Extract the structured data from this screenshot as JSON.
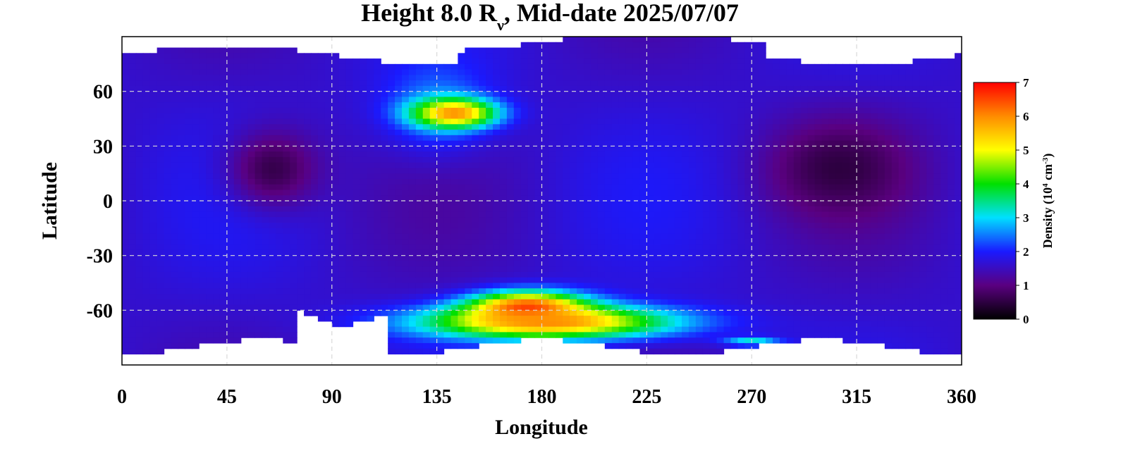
{
  "chart_data": {
    "type": "heatmap",
    "title_parts": {
      "lead": "Height 8.0 R",
      "subscript": "ν",
      "rest": ", Mid-date 2025/07/07"
    },
    "xlabel": "Longitude",
    "ylabel": "Latitude",
    "xlim": [
      0,
      360
    ],
    "ylim": [
      -90,
      90
    ],
    "x_ticks": [
      0,
      45,
      90,
      135,
      180,
      225,
      270,
      315,
      360
    ],
    "y_ticks": [
      60,
      30,
      0,
      -30,
      -60
    ],
    "x_tick_labels": [
      "0",
      "45",
      "90",
      "135",
      "180",
      "225",
      "270",
      "315",
      "360"
    ],
    "y_tick_labels": [
      "60",
      "30",
      "0",
      "-30",
      "-60"
    ],
    "grid": true,
    "colorbar": {
      "label_parts": {
        "lead": "Density (10",
        "sup1": "4",
        "mid": " cm",
        "sup2": "-3",
        "tail": ")"
      },
      "range": [
        0,
        7
      ],
      "ticks": [
        0,
        1,
        2,
        3,
        4,
        5,
        6,
        7
      ],
      "tick_labels": [
        "0",
        "1",
        "2",
        "3",
        "4",
        "5",
        "6",
        "7"
      ],
      "colors": [
        "#000000",
        "#5a0080",
        "#1a1aff",
        "#00e0ff",
        "#00e000",
        "#ffff00",
        "#ff8c00",
        "#ff0000"
      ],
      "placement": "right"
    },
    "features": [
      {
        "region": "stream-north",
        "lon": [
          105,
          165
        ],
        "lat": [
          20,
          85
        ],
        "density": 2.5
      },
      {
        "region": "northern-blob",
        "lon": [
          120,
          165
        ],
        "lat": [
          38,
          58
        ],
        "density": 6.0
      },
      {
        "region": "south-red-core",
        "lon": [
          143,
          205
        ],
        "lat": [
          -70,
          -48
        ],
        "density": 7.0
      },
      {
        "region": "south-orange-band",
        "lon": [
          115,
          250
        ],
        "lat": [
          -78,
          -55
        ],
        "density": 6.0
      },
      {
        "region": "north-low",
        "lon": [
          40,
          90
        ],
        "lat": [
          -10,
          45
        ],
        "density": 0.6
      },
      {
        "region": "east-low",
        "lon": [
          270,
          345
        ],
        "lat": [
          -15,
          50
        ],
        "density": 0.5
      },
      {
        "region": "south-cyan-patch",
        "lon": [
          255,
          285
        ],
        "lat": [
          -80,
          -74
        ],
        "density": 3.2
      }
    ]
  }
}
